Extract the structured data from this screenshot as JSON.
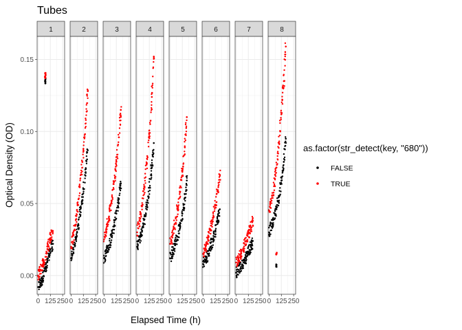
{
  "chart_data": {
    "type": "scatter",
    "title": "Tubes",
    "xlabel": "Elapsed Time (h)",
    "ylabel": "Optical Density (OD)",
    "xlim": [
      -10,
      270
    ],
    "ylim": [
      -0.013,
      0.166
    ],
    "x_ticks": [
      0,
      125,
      250
    ],
    "x_tick_labels": [
      "0",
      "125",
      "250"
    ],
    "y_ticks": [
      0.0,
      0.05,
      0.1,
      0.15
    ],
    "y_tick_labels": [
      "0.00",
      "0.05",
      "0.10",
      "0.15"
    ],
    "grid": true,
    "legend": {
      "title": "as.factor(str_detect(key, \"680\"))",
      "position": "right",
      "entries": [
        {
          "label": "FALSE",
          "color": "#000000"
        },
        {
          "label": "TRUE",
          "color": "#ff0000"
        }
      ]
    },
    "facets": [
      {
        "label": "1",
        "series": [
          {
            "group": "FALSE",
            "x": [
              0,
              25,
              50,
              75,
              100,
              125,
              150
            ],
            "y": [
              -0.008,
              -0.005,
              -0.002,
              0.005,
              0.012,
              0.018,
              0.022
            ],
            "outliers": [
              [
                72,
                0.134
              ],
              [
                75,
                0.136
              ]
            ]
          },
          {
            "group": "TRUE",
            "x": [
              0,
              25,
              50,
              75,
              100,
              125,
              150
            ],
            "y": [
              0.0,
              0.004,
              0.008,
              0.013,
              0.02,
              0.026,
              0.031
            ],
            "outliers": [
              [
                72,
                0.138
              ],
              [
                75,
                0.14
              ]
            ]
          }
        ]
      },
      {
        "label": "2",
        "series": [
          {
            "group": "FALSE",
            "x": [
              0,
              25,
              50,
              75,
              100,
              125,
              150,
              170
            ],
            "y": [
              0.012,
              0.018,
              0.025,
              0.035,
              0.047,
              0.06,
              0.074,
              0.087
            ]
          },
          {
            "group": "TRUE",
            "x": [
              0,
              25,
              50,
              75,
              100,
              125,
              150,
              170
            ],
            "y": [
              0.02,
              0.028,
              0.039,
              0.053,
              0.07,
              0.088,
              0.108,
              0.128
            ]
          }
        ]
      },
      {
        "label": "3",
        "series": [
          {
            "group": "FALSE",
            "x": [
              0,
              25,
              50,
              75,
              100,
              125,
              150,
              170
            ],
            "y": [
              0.012,
              0.016,
              0.021,
              0.027,
              0.034,
              0.043,
              0.053,
              0.064
            ]
          },
          {
            "group": "TRUE",
            "x": [
              0,
              25,
              50,
              75,
              100,
              125,
              150,
              170
            ],
            "y": [
              0.025,
              0.032,
              0.041,
              0.052,
              0.065,
              0.079,
              0.096,
              0.115
            ]
          }
        ]
      },
      {
        "label": "4",
        "series": [
          {
            "group": "FALSE",
            "x": [
              0,
              25,
              50,
              75,
              100,
              125,
              150,
              170
            ],
            "y": [
              0.02,
              0.025,
              0.031,
              0.039,
              0.049,
              0.061,
              0.075,
              0.092
            ]
          },
          {
            "group": "TRUE",
            "x": [
              0,
              25,
              50,
              75,
              100,
              125,
              150,
              170
            ],
            "y": [
              0.03,
              0.038,
              0.048,
              0.061,
              0.078,
              0.099,
              0.124,
              0.152
            ]
          }
        ]
      },
      {
        "label": "5",
        "series": [
          {
            "group": "FALSE",
            "x": [
              0,
              25,
              50,
              75,
              100,
              125,
              150,
              170
            ],
            "y": [
              0.012,
              0.016,
              0.021,
              0.027,
              0.034,
              0.043,
              0.054,
              0.066
            ]
          },
          {
            "group": "TRUE",
            "x": [
              0,
              25,
              50,
              75,
              100,
              125,
              150,
              170
            ],
            "y": [
              0.022,
              0.028,
              0.036,
              0.046,
              0.058,
              0.072,
              0.089,
              0.11
            ]
          }
        ]
      },
      {
        "label": "6",
        "series": [
          {
            "group": "FALSE",
            "x": [
              0,
              25,
              50,
              75,
              100,
              125,
              150,
              170
            ],
            "y": [
              0.008,
              0.011,
              0.015,
              0.02,
              0.025,
              0.031,
              0.038,
              0.046
            ]
          },
          {
            "group": "TRUE",
            "x": [
              0,
              25,
              50,
              75,
              100,
              125,
              150,
              170
            ],
            "y": [
              0.015,
              0.019,
              0.025,
              0.032,
              0.04,
              0.049,
              0.059,
              0.07
            ]
          }
        ]
      },
      {
        "label": "7",
        "series": [
          {
            "group": "FALSE",
            "x": [
              0,
              25,
              50,
              75,
              100,
              125,
              150,
              170
            ],
            "y": [
              0.002,
              0.004,
              0.006,
              0.009,
              0.012,
              0.016,
              0.02,
              0.024
            ]
          },
          {
            "group": "TRUE",
            "x": [
              0,
              25,
              50,
              75,
              100,
              125,
              150,
              170
            ],
            "y": [
              0.009,
              0.012,
              0.015,
              0.019,
              0.024,
              0.029,
              0.033,
              0.038
            ]
          }
        ]
      },
      {
        "label": "8",
        "series": [
          {
            "group": "FALSE",
            "x": [
              0,
              25,
              50,
              75,
              100,
              125,
              150,
              170
            ],
            "y": [
              0.03,
              0.034,
              0.039,
              0.046,
              0.055,
              0.066,
              0.079,
              0.095
            ],
            "outliers": [
              [
                75,
                0.007
              ]
            ]
          },
          {
            "group": "TRUE",
            "x": [
              0,
              25,
              50,
              75,
              100,
              125,
              150,
              170
            ],
            "y": [
              0.045,
              0.052,
              0.062,
              0.075,
              0.092,
              0.112,
              0.135,
              0.159
            ],
            "outliers": [
              [
                75,
                0.015
              ]
            ]
          }
        ]
      }
    ]
  }
}
